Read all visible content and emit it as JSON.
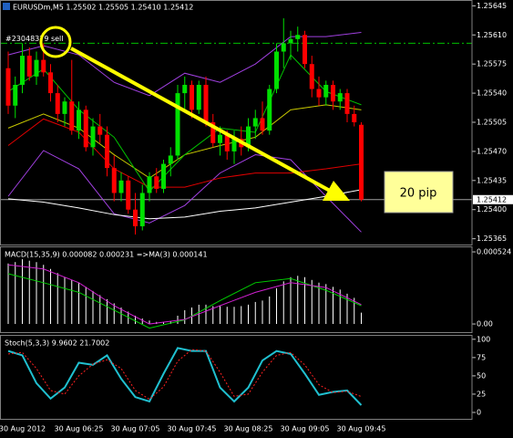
{
  "chart_data": [
    {
      "type": "candlestick",
      "title": "EURUSDm,M5  1.25502 1.25505 1.25410 1.25412",
      "categories": [
        null,
        null,
        "30 Aug 2012",
        null,
        null,
        null,
        null,
        null,
        null,
        null,
        "30 Aug 06:25",
        null,
        null,
        null,
        null,
        null,
        null,
        null,
        "30 Aug 07:05",
        null,
        null,
        null,
        null,
        null,
        null,
        null,
        "30 Aug 07:45",
        null,
        null,
        null,
        null,
        null,
        null,
        null,
        "30 Aug 08:25",
        null,
        null,
        null,
        null,
        null,
        null,
        null,
        "30 Aug 09:05",
        null,
        null,
        null,
        null,
        null,
        null,
        null,
        "30 Aug 09:45"
      ],
      "open": [
        1.2557,
        1.25525,
        1.2555,
        1.25585,
        1.2556,
        1.2558,
        1.25565,
        1.2554,
        1.25515,
        1.2553,
        1.25495,
        1.2552,
        1.25475,
        1.255,
        1.2549,
        1.2545,
        1.2542,
        1.25435,
        1.254,
        1.2538,
        1.2542,
        1.2544,
        1.25425,
        1.25455,
        1.25465,
        1.2554,
        1.2555,
        1.2552,
        1.2555,
        1.25505,
        1.2548,
        1.2549,
        1.2547,
        1.25485,
        1.25475,
        1.255,
        1.2551,
        1.25495,
        1.25545,
        1.2559,
        1.256,
        1.25605,
        1.2561,
        1.25575,
        1.25545,
        1.25535,
        1.2555,
        1.2553,
        1.2554,
        1.25515,
        1.25502
      ],
      "high": [
        1.2559,
        1.2556,
        1.256,
        1.25595,
        1.2559,
        1.256,
        1.25575,
        1.2555,
        1.25535,
        1.2558,
        1.2553,
        1.25525,
        1.2551,
        1.25515,
        1.255,
        1.25465,
        1.25445,
        1.2544,
        1.2542,
        1.2543,
        1.25445,
        1.2545,
        1.2546,
        1.25475,
        1.2555,
        1.2556,
        1.25555,
        1.25555,
        1.2556,
        1.25515,
        1.255,
        1.25495,
        1.25495,
        1.255,
        1.2551,
        1.2552,
        1.2553,
        1.2555,
        1.256,
        1.2563,
        1.25615,
        1.2562,
        1.25615,
        1.25585,
        1.2556,
        1.25555,
        1.25555,
        1.25545,
        1.25545,
        1.25525,
        1.25505
      ],
      "low": [
        1.25515,
        1.2551,
        1.2554,
        1.25555,
        1.2555,
        1.2556,
        1.2553,
        1.25505,
        1.255,
        1.2549,
        1.25485,
        1.2547,
        1.25465,
        1.2548,
        1.2544,
        1.2541,
        1.2541,
        1.25395,
        1.2537,
        1.25375,
        1.2541,
        1.2542,
        1.2542,
        1.2544,
        1.2546,
        1.2552,
        1.2551,
        1.25515,
        1.255,
        1.25475,
        1.25465,
        1.2546,
        1.25455,
        1.25465,
        1.2547,
        1.25485,
        1.2549,
        1.2549,
        1.2554,
        1.2557,
        1.2558,
        1.2559,
        1.2557,
        1.25535,
        1.25525,
        1.25525,
        1.2552,
        1.2552,
        1.25505,
        1.255,
        1.2541
      ],
      "close": [
        1.25525,
        1.2555,
        1.25585,
        1.2556,
        1.2558,
        1.25565,
        1.2554,
        1.25515,
        1.2553,
        1.25495,
        1.2552,
        1.25475,
        1.255,
        1.2549,
        1.2545,
        1.2542,
        1.25435,
        1.254,
        1.2538,
        1.2542,
        1.2544,
        1.25425,
        1.25455,
        1.25465,
        1.2554,
        1.2555,
        1.2552,
        1.2555,
        1.25505,
        1.2548,
        1.2549,
        1.2547,
        1.25485,
        1.25475,
        1.255,
        1.2551,
        1.25495,
        1.25545,
        1.2559,
        1.256,
        1.25605,
        1.2561,
        1.25575,
        1.25545,
        1.25535,
        1.2555,
        1.2553,
        1.2554,
        1.25515,
        1.25505,
        1.25412
      ],
      "up_color": "#00e000",
      "down_color": "#ff0000",
      "lines": [
        {
          "color": "#a040e0",
          "x": [
            0,
            5,
            10,
            15,
            20,
            25,
            30,
            35,
            40,
            45,
            50
          ],
          "values": [
            1.25586,
            1.25597,
            1.25586,
            1.25553,
            1.25537,
            1.25564,
            1.25553,
            1.25575,
            1.25608,
            1.25608,
            1.25613
          ]
        },
        {
          "color": "#a040e0",
          "x": [
            0,
            5,
            10,
            15,
            20,
            25,
            30,
            35,
            40,
            45,
            50
          ],
          "values": [
            1.25416,
            1.25471,
            1.25449,
            1.25395,
            1.25384,
            1.25405,
            1.25444,
            1.25466,
            1.2546,
            1.25416,
            1.25373
          ]
        },
        {
          "color": "#ffffff",
          "x": [
            0,
            5,
            10,
            15,
            20,
            25,
            30,
            35,
            40,
            45,
            50
          ],
          "values": [
            1.25413,
            1.25409,
            1.25402,
            1.25394,
            1.25389,
            1.25391,
            1.25398,
            1.25402,
            1.25409,
            1.25416,
            1.25424
          ]
        },
        {
          "color": "#e00000",
          "x": [
            0,
            5,
            10,
            15,
            20,
            25,
            30,
            35,
            40,
            45,
            50
          ],
          "values": [
            1.25477,
            1.25509,
            1.25493,
            1.25449,
            1.25427,
            1.25427,
            1.25438,
            1.25444,
            1.25444,
            1.25449,
            1.25455
          ]
        },
        {
          "color": "#c8c800",
          "x": [
            0,
            5,
            10,
            15,
            20,
            25,
            30,
            35,
            40,
            45,
            50
          ],
          "values": [
            1.25498,
            1.25515,
            1.25498,
            1.25466,
            1.25438,
            1.25466,
            1.25477,
            1.25487,
            1.2552,
            1.25526,
            1.2552
          ]
        },
        {
          "color": "#00c000",
          "x": [
            0,
            5,
            10,
            15,
            20,
            25,
            30,
            35,
            40,
            45,
            50
          ],
          "values": [
            1.25542,
            1.25569,
            1.2552,
            1.25487,
            1.25422,
            1.25466,
            1.25498,
            1.25493,
            1.25586,
            1.25542,
            1.25526
          ]
        }
      ],
      "order_line": {
        "label": "#23048379 sell",
        "value": 1.256,
        "color": "#00c000"
      },
      "last_price": 1.25412,
      "annotation": "20 pip",
      "ylim": [
        1.25358,
        1.25652
      ],
      "yticks": [
        1.25645,
        {
          "value": 1.2561,
          "label": "1.25610"
        },
        1.25575,
        {
          "value": 1.2554,
          "label": "1.25540"
        },
        1.25505,
        {
          "value": 1.2547,
          "label": "1.25470"
        },
        1.25435,
        {
          "value": 1.254,
          "label": "1.25400"
        },
        1.25365
      ],
      "grid": false
    },
    {
      "type": "macd",
      "title": "MACD(15,35,9) 0.000082 0.000231 =>MA(3) 0.000141",
      "values": [
        0.00044,
        0.00045,
        0.00047,
        0.00046,
        0.00045,
        0.00043,
        0.0004,
        0.00037,
        0.00034,
        0.00032,
        0.0003,
        0.00027,
        0.00024,
        0.00021,
        0.00018,
        0.00015,
        0.00012,
        9e-05,
        6e-05,
        4e-05,
        2.5e-05,
        1.5e-05,
        1.5e-05,
        2e-05,
        6e-05,
        0.0001,
        0.00012,
        0.00014,
        0.00014,
        0.00013,
        0.00013,
        0.000125,
        0.000125,
        0.00013,
        0.00014,
        0.00016,
        0.00017,
        0.0002,
        0.00026,
        0.00031,
        0.00034,
        0.00035,
        0.00034,
        0.00032,
        0.0003,
        0.00029,
        0.00027,
        0.00025,
        0.00022,
        0.00019,
        8.2e-05
      ],
      "color": "#ffffff",
      "lines": [
        {
          "color": "#00d000",
          "x": [
            0,
            5,
            10,
            15,
            20,
            25,
            30,
            35,
            40,
            45,
            50
          ],
          "values": [
            0.000365,
            0.0003,
            0.00023,
            0.0001,
            -3e-05,
            3e-05,
            0.00017,
            0.0003,
            0.00033,
            0.000245,
            0.000133
          ]
        },
        {
          "color": "#d020d0",
          "x": [
            0,
            5,
            10,
            15,
            20,
            25,
            30,
            35,
            40,
            45,
            50
          ],
          "values": [
            0.00043,
            0.0004,
            0.0003,
            0.000133,
            0,
            3.3e-05,
            0.000133,
            0.00023,
            0.0003,
            0.000265,
            0.000141
          ]
        }
      ],
      "ylim": [
        -6.6e-05,
        0.000564
      ],
      "yticks": [
        0.000524,
        {
          "value": 0,
          "label": "0.00"
        }
      ],
      "grid": false
    },
    {
      "type": "stochastic",
      "title": "Stoch(5,3,3) 9.9602 21.7002",
      "lines": [
        {
          "color": "#20c0d0",
          "x": [
            0,
            2,
            4,
            6,
            8,
            10,
            12,
            14,
            16,
            18,
            20,
            22,
            24,
            26,
            28,
            30,
            32,
            34,
            36,
            38,
            40,
            42,
            44,
            46,
            48,
            50
          ],
          "values": [
            84,
            78,
            40,
            19,
            34,
            68,
            65,
            78,
            46,
            21,
            15,
            53,
            88,
            84,
            84,
            34,
            15,
            34,
            71,
            84,
            80,
            53,
            24,
            28,
            30,
            9.9602
          ]
        },
        {
          "color": "#ff2020",
          "x": [
            0,
            2,
            4,
            6,
            8,
            10,
            12,
            14,
            16,
            18,
            20,
            22,
            24,
            26,
            28,
            30,
            32,
            34,
            36,
            38,
            40,
            42,
            44,
            46,
            48,
            50
          ],
          "values": [
            80,
            82,
            60,
            30,
            25,
            50,
            66,
            72,
            60,
            30,
            18,
            35,
            70,
            86,
            84,
            55,
            22,
            25,
            55,
            78,
            82,
            65,
            38,
            27,
            29,
            21.7002
          ]
        }
      ],
      "ylim": [
        -10,
        106
      ],
      "yticks": [
        100,
        75,
        50,
        25,
        0
      ],
      "grid": false
    }
  ]
}
